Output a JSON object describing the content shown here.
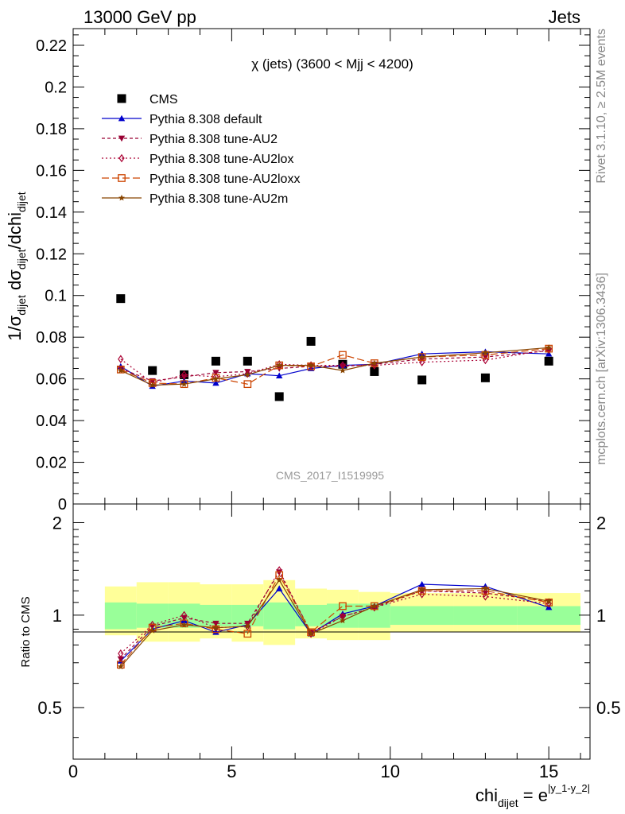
{
  "header": {
    "left": "13000 GeV pp",
    "right": "Jets"
  },
  "side_labels": {
    "rivet": "Rivet 3.1.10, ≥ 2.5M events",
    "mcplots": "mcplots.cern.ch [arXiv:1306.3436]"
  },
  "watermark": "CMS_2017_I1519995",
  "colors": {
    "cms": "#000000",
    "default": "#0000cc",
    "au2": "#990033",
    "au2lox": "#aa0033",
    "au2loxx": "#cc4400",
    "au2m": "#884400",
    "band_inner": "#99ff99",
    "band_outer": "#ffff99"
  },
  "chart_data": [
    {
      "type": "scatter",
      "title": "χ (jets) (3600 < Mjj < 4200)",
      "xlabel": "chi_dijet = e^|y_1-y_2|",
      "ylabel": "1/σ_dijet dσ_dijet/dchi_dijet",
      "xlim": [
        0,
        16.3
      ],
      "ylim": [
        0,
        0.228
      ],
      "yticks": [
        "0",
        "0.02",
        "0.04",
        "0.06",
        "0.08",
        "0.1",
        "0.12",
        "0.14",
        "0.16",
        "0.18",
        "0.2",
        "0.22"
      ],
      "xticks": [
        "0",
        "5",
        "10",
        "15"
      ],
      "x": [
        1.5,
        2.5,
        3.5,
        4.5,
        5.5,
        6.5,
        7.5,
        8.5,
        9.5,
        11,
        13,
        15
      ],
      "legend_position": "top-left",
      "series": [
        {
          "name": "CMS",
          "key": "cms",
          "marker": "square",
          "values": [
            0.0985,
            0.064,
            0.062,
            0.0685,
            0.0685,
            0.0515,
            0.078,
            0.067,
            0.0635,
            0.0595,
            0.0605,
            0.0685
          ]
        },
        {
          "name": "Pythia 8.308 default",
          "key": "default",
          "marker": "triangle-up",
          "dash": "",
          "values": [
            0.066,
            0.0565,
            0.059,
            0.058,
            0.0625,
            0.0615,
            0.065,
            0.0665,
            0.067,
            0.072,
            0.073,
            0.072
          ]
        },
        {
          "name": "Pythia 8.308 tune-AU2",
          "key": "au2",
          "marker": "triangle-down",
          "dash": "4,3",
          "values": [
            0.065,
            0.059,
            0.061,
            0.063,
            0.0635,
            0.065,
            0.066,
            0.066,
            0.067,
            0.0695,
            0.0705,
            0.0735
          ]
        },
        {
          "name": "Pythia 8.308 tune-AU2lox",
          "key": "au2lox",
          "marker": "diamond",
          "dash": "2,3",
          "values": [
            0.0695,
            0.058,
            0.062,
            0.061,
            0.0625,
            0.067,
            0.0665,
            0.0665,
            0.0665,
            0.068,
            0.069,
            0.074
          ]
        },
        {
          "name": "Pythia 8.308 tune-AU2loxx",
          "key": "au2loxx",
          "marker": "square-open",
          "dash": "9,4",
          "values": [
            0.0645,
            0.058,
            0.0575,
            0.0605,
            0.0575,
            0.0665,
            0.066,
            0.0715,
            0.0675,
            0.0705,
            0.0715,
            0.0745
          ]
        },
        {
          "name": "Pythia 8.308 tune-AU2m",
          "key": "au2m",
          "marker": "star",
          "dash": "",
          "values": [
            0.064,
            0.057,
            0.0575,
            0.06,
            0.062,
            0.0665,
            0.0665,
            0.064,
            0.0675,
            0.0705,
            0.0725,
            0.075
          ]
        }
      ]
    },
    {
      "type": "line",
      "ylabel": "Ratio to CMS",
      "xlim": [
        0,
        16.3
      ],
      "ylim": [
        0.34,
        2.3
      ],
      "log_y": true,
      "yticks": [
        "0.5",
        "1",
        "2"
      ],
      "band_edges": [
        1,
        2,
        3,
        4,
        5,
        6,
        7,
        8,
        9,
        10,
        12,
        14,
        16
      ],
      "band_inner": [
        [
          0.9,
          1.1
        ],
        [
          0.91,
          1.09
        ],
        [
          0.91,
          1.09
        ],
        [
          0.92,
          1.08
        ],
        [
          0.92,
          1.08
        ],
        [
          0.9,
          1.1
        ],
        [
          0.92,
          1.08
        ],
        [
          0.91,
          1.09
        ],
        [
          0.91,
          1.09
        ],
        [
          0.93,
          1.07
        ],
        [
          0.93,
          1.07
        ],
        [
          0.93,
          1.07
        ]
      ],
      "band_outer": [
        [
          0.86,
          1.24
        ],
        [
          0.82,
          1.28
        ],
        [
          0.82,
          1.28
        ],
        [
          0.84,
          1.26
        ],
        [
          0.82,
          1.26
        ],
        [
          0.8,
          1.3
        ],
        [
          0.84,
          1.22
        ],
        [
          0.83,
          1.21
        ],
        [
          0.83,
          1.19
        ],
        [
          0.88,
          1.18
        ],
        [
          0.88,
          1.18
        ],
        [
          0.88,
          1.18
        ]
      ],
      "x": [
        1.5,
        2.5,
        3.5,
        4.5,
        5.5,
        6.5,
        7.5,
        8.5,
        9.5,
        11,
        13,
        15
      ],
      "series": [
        {
          "key": "default",
          "values": [
            0.71,
            0.9,
            0.96,
            0.88,
            0.93,
            1.22,
            0.87,
            1.01,
            1.07,
            1.26,
            1.24,
            1.06
          ]
        },
        {
          "key": "au2",
          "values": [
            0.72,
            0.92,
            0.98,
            0.94,
            0.94,
            1.38,
            0.88,
            0.99,
            1.06,
            1.2,
            1.18,
            1.11
          ]
        },
        {
          "key": "au2lox",
          "values": [
            0.75,
            0.93,
            1.0,
            0.91,
            0.92,
            1.4,
            0.87,
            0.99,
            1.06,
            1.17,
            1.15,
            1.09
          ]
        },
        {
          "key": "au2loxx",
          "values": [
            0.69,
            0.91,
            0.94,
            0.9,
            0.87,
            1.35,
            0.88,
            1.07,
            1.07,
            1.2,
            1.2,
            1.1
          ]
        },
        {
          "key": "au2m",
          "values": [
            0.68,
            0.89,
            0.93,
            0.91,
            0.92,
            1.3,
            0.87,
            0.96,
            1.07,
            1.21,
            1.22,
            1.11
          ]
        }
      ]
    }
  ]
}
